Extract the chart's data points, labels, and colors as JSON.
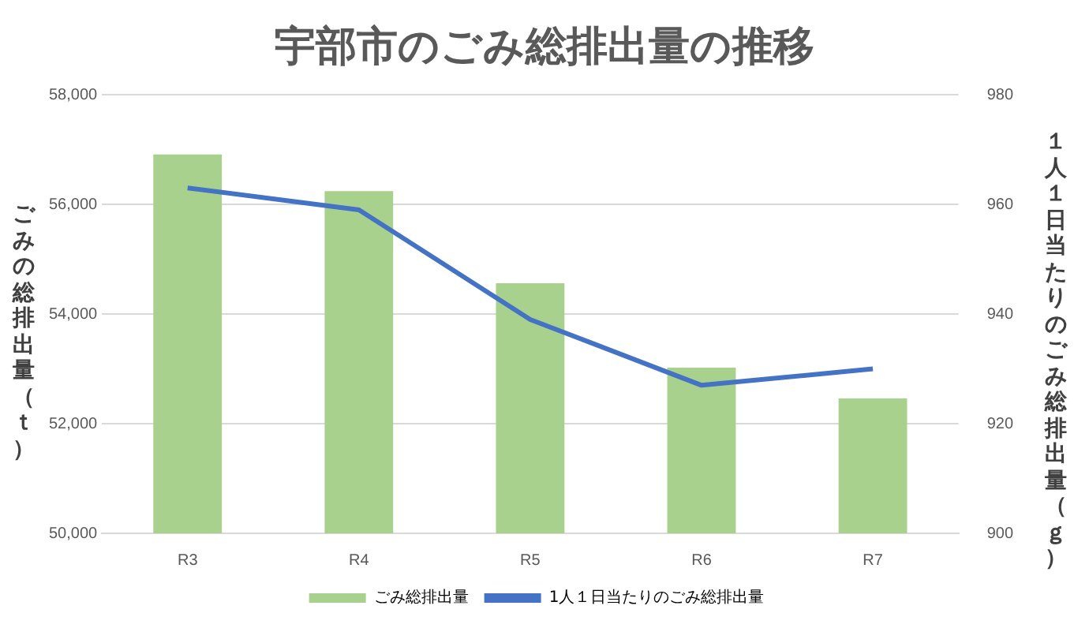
{
  "chart_data": {
    "type": "bar",
    "title": "宇部市のごみ総排出量の推移",
    "ylabel": "ごみの総排出量（ｔ）",
    "y2label": "１人１日当たりのごみ総排出量（ｇ）",
    "categories": [
      "R3",
      "R4",
      "R5",
      "R6",
      "R7"
    ],
    "series": [
      {
        "name": "ごみ総排出量",
        "color": "#a9d18e",
        "values": [
          56910,
          56240,
          54560,
          53020,
          52460
        ]
      },
      {
        "name": "1人１日当たりのごみ総排出量",
        "type": "line",
        "axis": "y2",
        "color": "#4472c4",
        "values": [
          963,
          959,
          939,
          927,
          930
        ]
      }
    ],
    "ylim": [
      50000,
      58000
    ],
    "yticks": [
      {
        "value": 50000,
        "label": "50,000"
      },
      {
        "value": 52000,
        "label": "52,000"
      },
      {
        "value": 54000,
        "label": "54,000"
      },
      {
        "value": 56000,
        "label": "56,000"
      },
      {
        "value": 58000,
        "label": "58,000"
      }
    ],
    "y2lim": [
      900,
      980
    ],
    "y2ticks": [
      900,
      920,
      940,
      960,
      980
    ],
    "grid": "y",
    "legend": "bottom",
    "marker": "none",
    "line_style": "solid"
  }
}
